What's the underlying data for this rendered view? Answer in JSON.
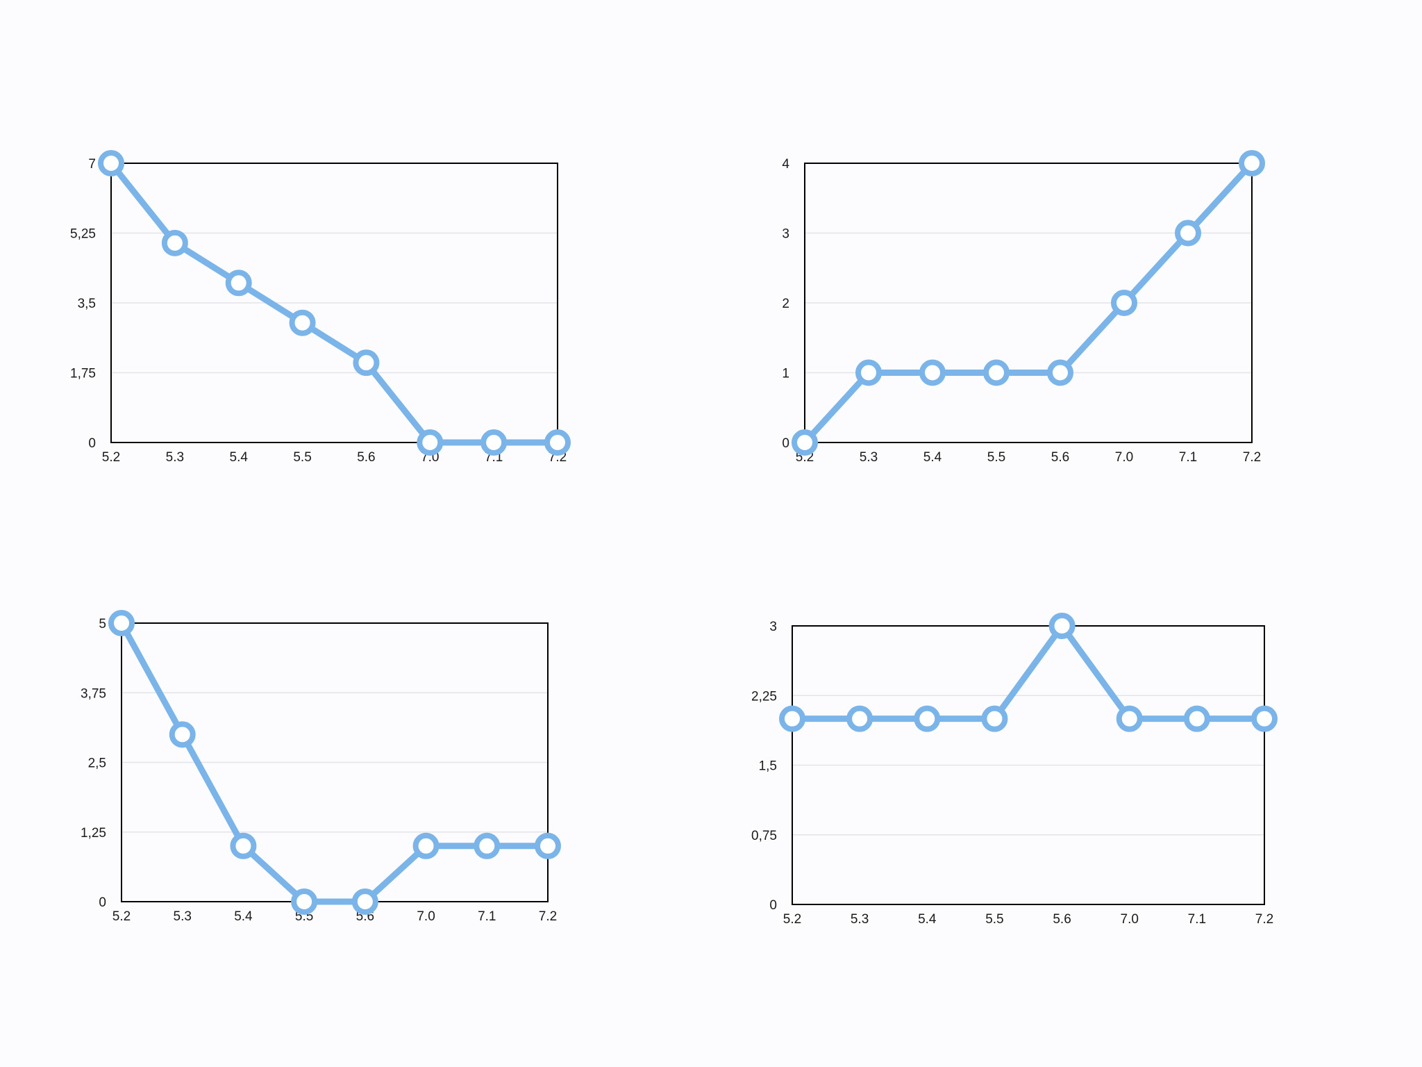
{
  "colors": {
    "series": "#7ab4e8",
    "frame": "#000000",
    "grid": "#e3e3e8",
    "background": "#fcfcfe"
  },
  "chart_data": [
    {
      "type": "line",
      "categories": [
        "5.2",
        "5.3",
        "5.4",
        "5.5",
        "5.6",
        "7.0",
        "7.1",
        "7.2"
      ],
      "series": [
        {
          "values": [
            7,
            5,
            4,
            3,
            2,
            0,
            0,
            0
          ]
        }
      ],
      "yticks": [
        0,
        1.75,
        3.5,
        5.25,
        7
      ],
      "ytick_labels": [
        "0",
        "1,75",
        "3,5",
        "5,25",
        "7"
      ],
      "ylim": [
        0,
        7
      ],
      "grid": true,
      "legend": "none"
    },
    {
      "type": "line",
      "categories": [
        "5.2",
        "5.3",
        "5.4",
        "5.5",
        "5.6",
        "7.0",
        "7.1",
        "7.2"
      ],
      "series": [
        {
          "values": [
            0,
            1,
            1,
            1,
            1,
            2,
            3,
            4
          ]
        }
      ],
      "yticks": [
        0,
        1,
        2,
        3,
        4
      ],
      "ytick_labels": [
        "0",
        "1",
        "2",
        "3",
        "4"
      ],
      "ylim": [
        0,
        4
      ],
      "grid": true,
      "legend": "none"
    },
    {
      "type": "line",
      "categories": [
        "5.2",
        "5.3",
        "5.4",
        "5.5",
        "5.6",
        "7.0",
        "7.1",
        "7.2"
      ],
      "series": [
        {
          "values": [
            5,
            3,
            1,
            0,
            0,
            1,
            1,
            1
          ]
        }
      ],
      "yticks": [
        0,
        1.25,
        2.5,
        3.75,
        5
      ],
      "ytick_labels": [
        "0",
        "1,25",
        "2,5",
        "3,75",
        "5"
      ],
      "ylim": [
        0,
        5
      ],
      "grid": true,
      "legend": "none"
    },
    {
      "type": "line",
      "categories": [
        "5.2",
        "5.3",
        "5.4",
        "5.5",
        "5.6",
        "7.0",
        "7.1",
        "7.2"
      ],
      "series": [
        {
          "values": [
            2,
            2,
            2,
            2,
            3,
            2,
            2,
            2
          ]
        }
      ],
      "yticks": [
        0,
        0.75,
        1.5,
        2.25,
        3
      ],
      "ytick_labels": [
        "0",
        "0,75",
        "1,5",
        "2,25",
        "3"
      ],
      "ylim": [
        0,
        3
      ],
      "grid": true,
      "legend": "none"
    }
  ]
}
